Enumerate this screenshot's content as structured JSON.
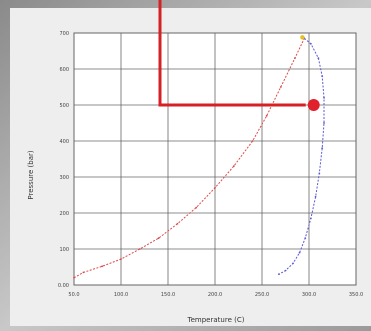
{
  "chart_data": {
    "type": "line",
    "title": "",
    "xlabel": "Temperature (C)",
    "ylabel": "Pressure (bar)",
    "xlim": [
      50,
      350
    ],
    "ylim": [
      0,
      700
    ],
    "x_ticks": [
      "50.0",
      "100.0",
      "150.0",
      "200.0",
      "250.0",
      "300.0",
      "350.0"
    ],
    "y_ticks": [
      "0.00",
      "100",
      "200",
      "300",
      "400",
      "500",
      "600",
      "700"
    ],
    "grid": true,
    "legend": "none",
    "series": [
      {
        "color": "#e04848",
        "x": [
          50,
          60,
          80,
          100,
          120,
          140,
          160,
          180,
          200,
          220,
          240,
          255,
          270,
          285,
          295
        ],
        "y": [
          20,
          35,
          52,
          72,
          100,
          130,
          170,
          215,
          270,
          330,
          400,
          470,
          550,
          630,
          685
        ]
      },
      {
        "color": "#5a5ad6",
        "x": [
          295,
          302,
          310,
          314,
          316,
          316,
          314,
          311,
          307,
          302,
          296,
          290,
          283,
          275,
          268
        ],
        "y": [
          685,
          670,
          630,
          580,
          520,
          450,
          380,
          310,
          245,
          185,
          130,
          90,
          60,
          40,
          30
        ]
      }
    ],
    "marker": {
      "x": 305,
      "y": 500,
      "color": "#e0202a"
    },
    "start_marker": {
      "x": 293,
      "y": 688,
      "color": "#e8c020"
    }
  }
}
